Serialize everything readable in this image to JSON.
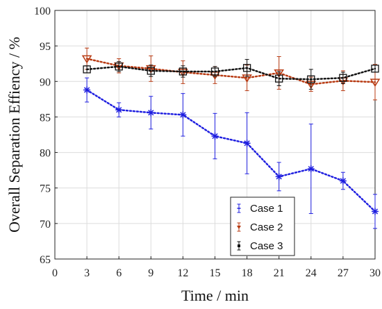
{
  "chart_data": {
    "type": "line",
    "xlabel": "Time  / min",
    "ylabel": "Overall Separation Effiency / %",
    "xlim": [
      0,
      30
    ],
    "ylim": [
      65,
      100
    ],
    "xticks": [
      "0",
      "3",
      "6",
      "9",
      "12",
      "15",
      "18",
      "21",
      "24",
      "27",
      "30"
    ],
    "yticks": [
      "65",
      "70",
      "75",
      "80",
      "85",
      "90",
      "95",
      "100"
    ],
    "grid": true,
    "legend_position": "bottom-right",
    "x": [
      3,
      6,
      9,
      12,
      15,
      18,
      21,
      24,
      27,
      30
    ],
    "series": [
      {
        "name": "Case 1",
        "color": "#1f1fe0",
        "marker": "asterisk",
        "values": [
          88.8,
          86.0,
          85.6,
          85.3,
          82.3,
          81.3,
          76.6,
          77.7,
          76.0,
          71.7
        ],
        "error": [
          1.7,
          1.0,
          2.3,
          3.0,
          3.2,
          4.3,
          2.0,
          6.3,
          1.2,
          2.4
        ]
      },
      {
        "name": "Case 2",
        "color": "#b83a12",
        "marker": "triangle-down",
        "values": [
          93.2,
          92.2,
          91.8,
          91.3,
          90.9,
          90.5,
          91.2,
          89.6,
          90.1,
          89.9
        ],
        "error": [
          1.5,
          1.0,
          1.8,
          1.6,
          1.2,
          1.8,
          2.3,
          1.0,
          1.4,
          2.5
        ]
      },
      {
        "name": "Case 3",
        "color": "#111111",
        "marker": "square",
        "values": [
          91.7,
          92.1,
          91.5,
          91.4,
          91.4,
          91.9,
          90.4,
          90.3,
          90.5,
          91.8
        ],
        "error": [
          0.5,
          0.7,
          0.8,
          0.8,
          0.7,
          1.2,
          1.0,
          1.4,
          0.8,
          0.5
        ]
      }
    ]
  }
}
